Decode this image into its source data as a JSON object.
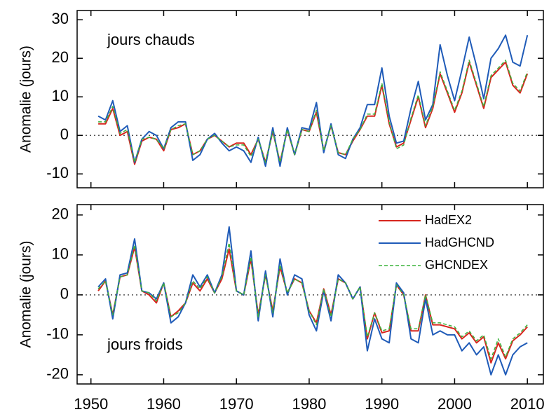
{
  "chart_data": [
    {
      "type": "line",
      "y_label": "Anomalie (jours)",
      "annotation": "jours chauds",
      "xlim": [
        1948.1,
        2012.2
      ],
      "xticks": [
        1950,
        1960,
        1970,
        1980,
        1990,
        2000,
        2010
      ],
      "ylim": [
        -13.6,
        32.4
      ],
      "yticks": [
        -10,
        0,
        10,
        20,
        30
      ],
      "reference_line": 0,
      "x": [
        1951,
        1952,
        1953,
        1954,
        1955,
        1956,
        1957,
        1958,
        1959,
        1960,
        1961,
        1962,
        1963,
        1964,
        1965,
        1966,
        1967,
        1968,
        1969,
        1970,
        1971,
        1972,
        1973,
        1974,
        1975,
        1976,
        1977,
        1978,
        1979,
        1980,
        1981,
        1982,
        1983,
        1984,
        1985,
        1986,
        1987,
        1988,
        1989,
        1990,
        1991,
        1992,
        1993,
        1994,
        1995,
        1996,
        1997,
        1998,
        1999,
        2000,
        2001,
        2002,
        2003,
        2004,
        2005,
        2006,
        2007,
        2008,
        2009,
        2010
      ],
      "series": [
        {
          "name": "HadEX2",
          "color": "#d7261e",
          "values": [
            3,
            3,
            7,
            0,
            1,
            -7.5,
            -1.5,
            -0.5,
            -1,
            -4,
            1.5,
            2,
            3,
            -5,
            -4,
            -1,
            0,
            -1.5,
            -3,
            -2,
            -2,
            -5,
            -1,
            -7,
            1,
            -7,
            1.5,
            -5,
            1.5,
            1,
            6,
            -4,
            2.5,
            -4.5,
            -5,
            -1.5,
            1.5,
            5,
            5,
            13,
            3,
            -3,
            -2,
            4,
            10,
            2,
            7,
            16,
            11,
            6,
            11,
            19,
            13,
            7,
            15,
            17,
            19,
            13,
            11,
            16
          ]
        },
        {
          "name": "HadGHCND",
          "color": "#1f5bb8",
          "values": [
            5,
            4,
            9,
            1,
            2.5,
            -7,
            -1,
            1,
            0,
            -3.5,
            2,
            3.5,
            3.5,
            -6.5,
            -5,
            -1,
            0.5,
            -2,
            -4,
            -3,
            -4,
            -7,
            -0.5,
            -8,
            2,
            -8,
            2,
            -5,
            2,
            1.5,
            8.5,
            -4.5,
            3,
            -5,
            -6,
            -1,
            2,
            8,
            8,
            17.5,
            5,
            -2,
            -1.5,
            7,
            14,
            4,
            8,
            23.5,
            15.5,
            9,
            17,
            25.5,
            18,
            9.5,
            20,
            22.5,
            26,
            19,
            18,
            26
          ]
        },
        {
          "name": "GHCNDEX",
          "color": "#3cb33c",
          "dashed": true,
          "values": [
            3.5,
            3.5,
            7.5,
            0.5,
            1.5,
            -7,
            -1,
            -0.5,
            -1,
            -3.5,
            1.5,
            2.5,
            3,
            -5,
            -4,
            -1,
            0,
            -1.5,
            -3,
            -2.5,
            -2.5,
            -5.5,
            -1,
            -7,
            1,
            -7,
            1.5,
            -5,
            1.5,
            1,
            6.5,
            -4,
            2.5,
            -4.5,
            -5,
            -1,
            1.5,
            5.5,
            5.5,
            13.5,
            3.5,
            -3.5,
            -2.5,
            4.5,
            10.5,
            2.5,
            7.5,
            16.5,
            11.5,
            6.5,
            11.5,
            19.5,
            13.5,
            7.5,
            15.5,
            17.5,
            19.5,
            13.5,
            11.5,
            16.5
          ]
        }
      ]
    },
    {
      "type": "line",
      "y_label": "Anomalie (jours)",
      "annotation": "jours froids",
      "legend": "upper right",
      "xlim": [
        1948.1,
        2012.2
      ],
      "xticks": [
        1950,
        1960,
        1970,
        1980,
        1990,
        2000,
        2010
      ],
      "ylim": [
        -22.3,
        22.6
      ],
      "yticks": [
        -20,
        -10,
        0,
        10,
        20
      ],
      "reference_line": 0,
      "x": [
        1951,
        1952,
        1953,
        1954,
        1955,
        1956,
        1957,
        1958,
        1959,
        1960,
        1961,
        1962,
        1963,
        1964,
        1965,
        1966,
        1967,
        1968,
        1969,
        1970,
        1971,
        1972,
        1973,
        1974,
        1975,
        1976,
        1977,
        1978,
        1979,
        1980,
        1981,
        1982,
        1983,
        1984,
        1985,
        1986,
        1987,
        1988,
        1989,
        1990,
        1991,
        1992,
        1993,
        1994,
        1995,
        1996,
        1997,
        1998,
        1999,
        2000,
        2001,
        2002,
        2003,
        2004,
        2005,
        2006,
        2007,
        2008,
        2009,
        2010
      ],
      "series": [
        {
          "name": "HadEX2",
          "color": "#d7261e",
          "values": [
            1,
            3.5,
            -5,
            4.5,
            5,
            12,
            1,
            0,
            -2,
            3,
            -5.5,
            -4,
            -2,
            3,
            1,
            4,
            0.5,
            4,
            11.5,
            1,
            0,
            9,
            -5,
            5,
            -4,
            7,
            0.5,
            4,
            3,
            -4,
            -7,
            1.5,
            -5,
            4,
            3,
            -1,
            2,
            -11,
            -4.5,
            -9.5,
            -9,
            2.5,
            0,
            -9,
            -9,
            0,
            -7.5,
            -7.5,
            -8,
            -8.5,
            -11,
            -9.5,
            -12,
            -10.5,
            -17,
            -12,
            -16,
            -11.5,
            -10,
            -8
          ]
        },
        {
          "name": "HadGHCND",
          "color": "#1f5bb8",
          "values": [
            2,
            4,
            -6,
            5,
            5.5,
            14,
            1,
            0.5,
            -1,
            3,
            -7,
            -5.5,
            -2,
            5,
            2,
            5,
            0.5,
            5,
            17,
            1,
            0,
            11,
            -6.5,
            6,
            -5.5,
            9,
            0,
            5,
            4,
            -5,
            -9,
            1,
            -6.5,
            5,
            3,
            -1,
            2,
            -14,
            -6,
            -11,
            -12,
            3,
            0.5,
            -11,
            -12,
            -1,
            -10,
            -9,
            -10,
            -10,
            -14,
            -12,
            -15,
            -13,
            -20,
            -15,
            -20,
            -15,
            -13,
            -12
          ]
        },
        {
          "name": "GHCNDEX",
          "color": "#3cb33c",
          "dashed": true,
          "values": [
            1.5,
            3.5,
            -5,
            4.5,
            5,
            12.5,
            1,
            0.5,
            -1.5,
            3,
            -5.5,
            -4.5,
            -2,
            3.5,
            1.5,
            4.5,
            0.5,
            4.5,
            13,
            1,
            0,
            9.5,
            -5.5,
            5,
            -4.5,
            7.5,
            0.5,
            4,
            3,
            -4,
            -7.5,
            1.5,
            -5.5,
            4,
            3,
            -1,
            2,
            -10.5,
            -4.5,
            -9,
            -8.5,
            2.5,
            0,
            -8.5,
            -8.5,
            0,
            -7,
            -7,
            -7.5,
            -8,
            -10.5,
            -9,
            -11.5,
            -10,
            -16,
            -11,
            -15.5,
            -11,
            -9.5,
            -7.5
          ]
        }
      ]
    }
  ]
}
